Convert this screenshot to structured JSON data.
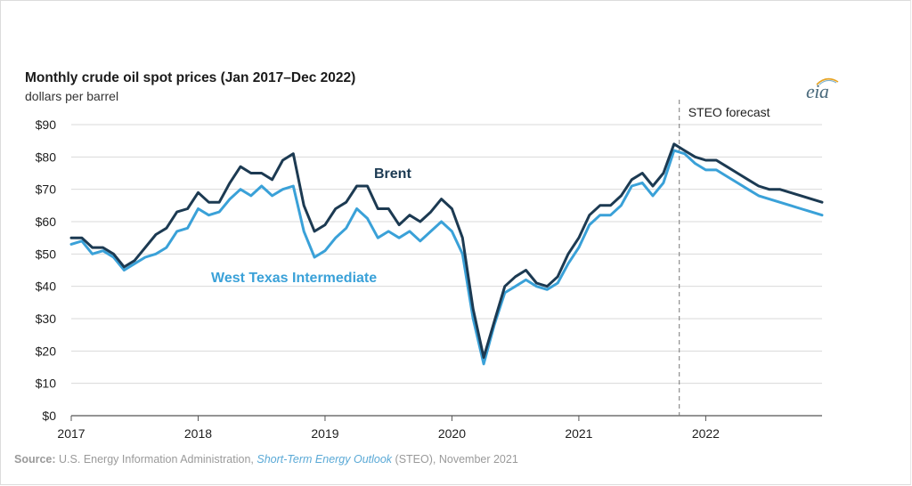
{
  "chart_data": {
    "type": "line",
    "title": "Monthly crude oil spot prices (Jan 2017–Dec 2022)",
    "subtitle": "dollars per barrel",
    "xlabel": "",
    "ylabel": "",
    "ylim": [
      0,
      90
    ],
    "y_ticks": [
      "$0",
      "$10",
      "$20",
      "$30",
      "$40",
      "$50",
      "$60",
      "$70",
      "$80",
      "$90"
    ],
    "x_ticks": [
      "2017",
      "2018",
      "2019",
      "2020",
      "2021",
      "2022"
    ],
    "x_start": "2017-01",
    "grid": true,
    "forecast_label": "STEO forecast",
    "forecast_start": "2021-11",
    "series": [
      {
        "name": "Brent",
        "color": "#1c3a52",
        "values": [
          55,
          55,
          52,
          52,
          50,
          46,
          48,
          52,
          56,
          58,
          63,
          64,
          69,
          66,
          66,
          72,
          77,
          75,
          75,
          73,
          79,
          81,
          65,
          57,
          59,
          64,
          66,
          71,
          71,
          64,
          64,
          59,
          62,
          60,
          63,
          67,
          64,
          55,
          33,
          18,
          29,
          40,
          43,
          45,
          41,
          40,
          43,
          50,
          55,
          62,
          65,
          65,
          68,
          73,
          75,
          71,
          75,
          84,
          82,
          80,
          79,
          79,
          77,
          75,
          73,
          71,
          70,
          70,
          69,
          68,
          67,
          66
        ]
      },
      {
        "name": "West Texas Intermediate",
        "color": "#3aa1d8",
        "values": [
          53,
          54,
          50,
          51,
          49,
          45,
          47,
          49,
          50,
          52,
          57,
          58,
          64,
          62,
          63,
          67,
          70,
          68,
          71,
          68,
          70,
          71,
          57,
          49,
          51,
          55,
          58,
          64,
          61,
          55,
          57,
          55,
          57,
          54,
          57,
          60,
          57,
          50,
          30,
          16,
          28,
          38,
          40,
          42,
          40,
          39,
          41,
          47,
          52,
          59,
          62,
          62,
          65,
          71,
          72,
          68,
          72,
          82,
          81,
          78,
          76,
          76,
          74,
          72,
          70,
          68,
          67,
          66,
          65,
          64,
          63,
          62
        ]
      }
    ]
  },
  "source": {
    "label": "Source:",
    "text_before": "U.S. Energy Information Administration,",
    "publication": "Short-Term Energy Outlook",
    "text_after": "(STEO), November 2021"
  },
  "logo_text": "eia"
}
